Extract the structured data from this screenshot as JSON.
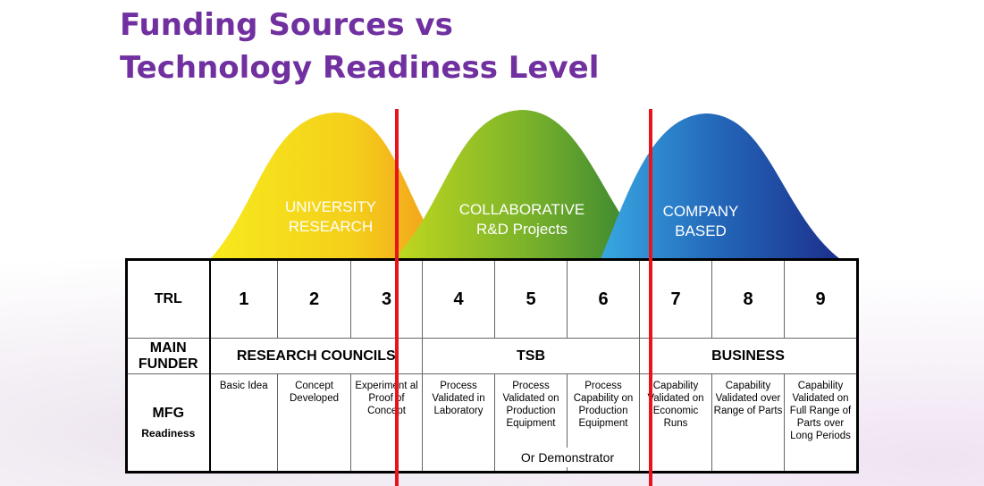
{
  "title": {
    "line1": "Funding Sources vs",
    "line2": "Technology Readiness Level"
  },
  "humps": [
    {
      "id": "university",
      "line1": "UNIVERSITY",
      "line2": "RESEARCH",
      "colors": [
        "#f2e11a",
        "#f6b21a"
      ]
    },
    {
      "id": "collaborative",
      "line1": "COLLABORATIVE",
      "line2": "R&D Projects",
      "colors": [
        "#9dc31d",
        "#3c8c2c"
      ]
    },
    {
      "id": "company",
      "line1": "COMPANY",
      "line2": "BASED",
      "colors": [
        "#2d98d8",
        "#1b3f98"
      ]
    }
  ],
  "table": {
    "row_labels": {
      "trl": "TRL",
      "funder_line1": "MAIN",
      "funder_line2": "FUNDER",
      "mfg_line1": "MFG",
      "mfg_line2": "Readiness"
    },
    "trl_levels": [
      "1",
      "2",
      "3",
      "4",
      "5",
      "6",
      "7",
      "8",
      "9"
    ],
    "funders": [
      "RESEARCH COUNCILS",
      "TSB",
      "BUSINESS"
    ],
    "mfg": [
      "Basic Idea",
      "Concept Developed",
      "Experiment al Proof of Concept",
      "Process Validated in Laboratory",
      "Process Validated on Production Equipment",
      "Process Capability on Production Equipment",
      "Capability Validated on Economic Runs",
      "Capability Validated over Range of Parts",
      "Capability Validated on Full Range of Parts over Long Periods"
    ],
    "note": "Or Demonstrator"
  },
  "divider_color": "#e8141c"
}
